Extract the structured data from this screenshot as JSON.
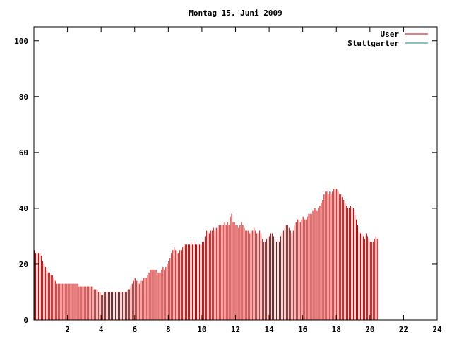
{
  "chart_data": {
    "type": "bar",
    "title": "Montag 15. Juni 2009",
    "xlim": [
      0,
      24
    ],
    "ylim": [
      0,
      105
    ],
    "xticks": [
      2,
      4,
      6,
      8,
      10,
      12,
      14,
      16,
      18,
      20,
      22,
      24
    ],
    "yticks": [
      0,
      20,
      40,
      60,
      80,
      100
    ],
    "grid": false,
    "legend_position": "top-right",
    "series": [
      {
        "name": "User",
        "color": "#cc0000",
        "points_per_hour": 12,
        "values": [
          25,
          24,
          24,
          24,
          24,
          23,
          21,
          20,
          19,
          18,
          17,
          17,
          16,
          16,
          15,
          14,
          13,
          13,
          13,
          13,
          13,
          13,
          13,
          13,
          13,
          13,
          13,
          13,
          13,
          13,
          13,
          13,
          12,
          12,
          12,
          12,
          12,
          12,
          12,
          12,
          12,
          12,
          11,
          11,
          11,
          11,
          10,
          10,
          9,
          9,
          10,
          10,
          10,
          10,
          10,
          10,
          10,
          10,
          10,
          10,
          10,
          10,
          10,
          10,
          10,
          10,
          10,
          11,
          11,
          12,
          13,
          14,
          15,
          14,
          14,
          13,
          14,
          14,
          15,
          15,
          15,
          16,
          17,
          18,
          18,
          18,
          18,
          18,
          17,
          17,
          17,
          18,
          19,
          18,
          19,
          20,
          21,
          22,
          24,
          25,
          26,
          25,
          24,
          24,
          25,
          25,
          26,
          27,
          27,
          27,
          27,
          27,
          28,
          27,
          28,
          27,
          27,
          27,
          27,
          27,
          28,
          28,
          30,
          32,
          32,
          31,
          32,
          32,
          33,
          32,
          33,
          33,
          34,
          34,
          34,
          34,
          35,
          34,
          35,
          34,
          37,
          38,
          35,
          35,
          34,
          34,
          33,
          34,
          35,
          34,
          33,
          32,
          32,
          32,
          31,
          32,
          32,
          33,
          32,
          31,
          31,
          32,
          31,
          29,
          28,
          28,
          29,
          30,
          30,
          31,
          31,
          30,
          29,
          28,
          29,
          28,
          30,
          31,
          32,
          33,
          34,
          34,
          33,
          32,
          31,
          32,
          34,
          35,
          36,
          36,
          35,
          36,
          37,
          36,
          36,
          37,
          38,
          38,
          38,
          39,
          40,
          40,
          39,
          40,
          41,
          42,
          43,
          45,
          46,
          46,
          45,
          46,
          45,
          46,
          47,
          47,
          47,
          46,
          45,
          45,
          44,
          43,
          42,
          41,
          40,
          40,
          41,
          40,
          40,
          38,
          36,
          34,
          32,
          31,
          31,
          30,
          29,
          31,
          30,
          29,
          28,
          28,
          28,
          29,
          30,
          29
        ]
      },
      {
        "name": "Stuttgarter",
        "color": "#008b8b",
        "values": []
      }
    ]
  }
}
